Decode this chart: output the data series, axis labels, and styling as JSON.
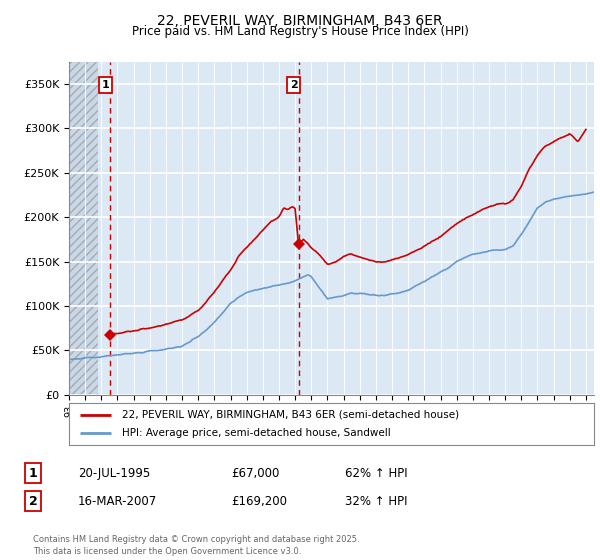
{
  "title": "22, PEVERIL WAY, BIRMINGHAM, B43 6ER",
  "subtitle": "Price paid vs. HM Land Registry's House Price Index (HPI)",
  "ylim": [
    0,
    375000
  ],
  "yticks": [
    0,
    50000,
    100000,
    150000,
    200000,
    250000,
    300000,
    350000
  ],
  "ytick_labels": [
    "£0",
    "£50K",
    "£100K",
    "£150K",
    "£200K",
    "£250K",
    "£300K",
    "£350K"
  ],
  "background_color": "#ffffff",
  "sale1_date": 1995.55,
  "sale1_price": 67000,
  "sale1_label": "1",
  "sale2_date": 2007.21,
  "sale2_price": 169200,
  "sale2_label": "2",
  "red_line_color": "#cc0000",
  "blue_line_color": "#6699cc",
  "vline_color": "#cc0000",
  "legend_red": "22, PEVERIL WAY, BIRMINGHAM, B43 6ER (semi-detached house)",
  "legend_blue": "HPI: Average price, semi-detached house, Sandwell",
  "note1_num": "1",
  "note1_date": "20-JUL-1995",
  "note1_price": "£67,000",
  "note1_hpi": "62% ↑ HPI",
  "note2_num": "2",
  "note2_date": "16-MAR-2007",
  "note2_price": "£169,200",
  "note2_hpi": "32% ↑ HPI",
  "footer": "Contains HM Land Registry data © Crown copyright and database right 2025.\nThis data is licensed under the Open Government Licence v3.0.",
  "xmin": 1993.0,
  "xmax": 2025.5
}
